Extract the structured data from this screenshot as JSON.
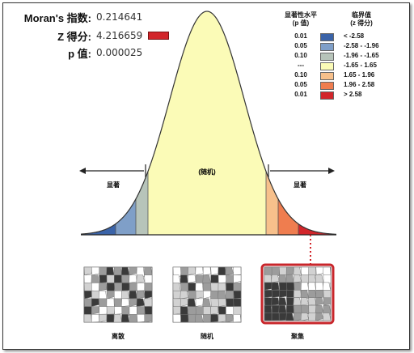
{
  "stats": {
    "moran_label": "Moran's 指数:",
    "moran_value": "0.214641",
    "z_label": "Z 得分:",
    "z_value": "4.216659",
    "p_label": "p 值:",
    "p_value": "0.000025"
  },
  "legend": {
    "p_header": "显著性水平\n(p 值)",
    "z_header": "临界值\n(z 得分)",
    "rows": [
      {
        "p": "0.01",
        "z": "< -2.58",
        "color": "#3a63a8"
      },
      {
        "p": "0.05",
        "z": "-2.58 - -1.96",
        "color": "#7f9fc8"
      },
      {
        "p": "0.10",
        "z": "-1.96 - -1.65",
        "color": "#b7c4ba"
      },
      {
        "p": "---",
        "z": "-1.65 - 1.65",
        "color": "#fbfbb7"
      },
      {
        "p": "0.10",
        "z": "1.65 - 1.96",
        "color": "#f7c08b"
      },
      {
        "p": "0.05",
        "z": "1.96 - 2.58",
        "color": "#ef7d4f"
      },
      {
        "p": "0.01",
        "z": "> 2.58",
        "color": "#d2252a"
      }
    ]
  },
  "curve": {
    "center_label": "(随机)",
    "left_label": "显著",
    "right_label": "显著"
  },
  "maps": [
    {
      "label": "离散"
    },
    {
      "label": "随机"
    },
    {
      "label": "聚集"
    }
  ]
}
